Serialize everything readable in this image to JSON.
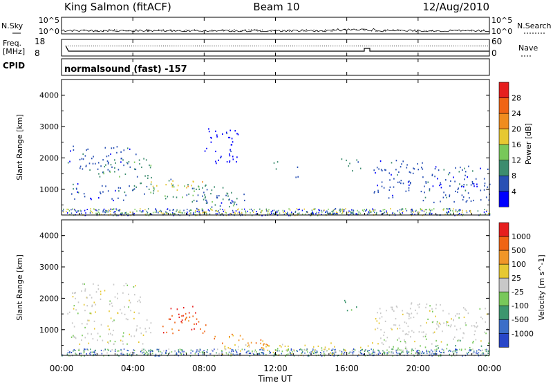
{
  "header": {
    "station": "King Salmon (fitACF)",
    "beam": "Beam 10",
    "date": "12/Aug/2010"
  },
  "noise_panel": {
    "left_label": "N.Sky",
    "right_label": "N.Search",
    "ticks": [
      "10^5",
      "10^0"
    ]
  },
  "freq_panel": {
    "left_label_1": "Freq.",
    "left_label_2": "[MHz]",
    "left_ticks": [
      "18",
      "8"
    ],
    "right_label": "Nave",
    "right_ticks": [
      "60",
      "0"
    ]
  },
  "cpid_panel": {
    "label": "CPID",
    "text": "normalsound (fast) -157"
  },
  "time_axis": {
    "label": "Time UT",
    "ticks": [
      "00:00",
      "04:00",
      "08:00",
      "12:00",
      "16:00",
      "20:00",
      "00:00"
    ]
  },
  "chart_data": [
    {
      "type": "heatmap",
      "panel": "power",
      "xlabel": "",
      "ylabel": "Slant Range [km]",
      "x_ticks": [
        "00:00",
        "04:00",
        "08:00",
        "12:00",
        "16:00",
        "20:00",
        "00:00"
      ],
      "y_ticks": [
        "1000",
        "2000",
        "3000",
        "4000"
      ],
      "xlim": [
        0,
        24
      ],
      "ylim": [
        180,
        4500
      ],
      "colorbar": {
        "label": "Power [dB]",
        "ticks": [
          "4",
          "8",
          "12",
          "16",
          "20",
          "24",
          "28"
        ],
        "colors": [
          "#0000ff",
          "#2850b4",
          "#3c8c6e",
          "#78c85a",
          "#e6c832",
          "#f08c1e",
          "#f06414",
          "#e61e1e"
        ]
      },
      "scatter_regions": [
        {
          "t": [
            0.2,
            4.2
          ],
          "r": [
            1600,
            2400
          ],
          "level": 1,
          "trend": 0
        },
        {
          "t": [
            0.5,
            4.0
          ],
          "r": [
            650,
            1200
          ],
          "level": 1,
          "trend": 0
        },
        {
          "t": [
            2.0,
            5.0
          ],
          "r": [
            1400,
            2000
          ],
          "level": 2,
          "trend": 0
        },
        {
          "t": [
            4.0,
            10.0
          ],
          "r": [
            850,
            1500
          ],
          "level": 2,
          "trend": -150
        },
        {
          "t": [
            5.0,
            8.0
          ],
          "r": [
            950,
            1350
          ],
          "level": 4,
          "trend": 0
        },
        {
          "t": [
            7.5,
            10.5
          ],
          "r": [
            400,
            900
          ],
          "level": 1,
          "trend": 0
        },
        {
          "t": [
            8.0,
            10.0
          ],
          "r": [
            1800,
            3000
          ],
          "level": 0,
          "trend": 0
        },
        {
          "t": [
            11.8,
            12.2
          ],
          "r": [
            1500,
            1900
          ],
          "level": 2,
          "trend": 0
        },
        {
          "t": [
            13.0,
            13.3
          ],
          "r": [
            1300,
            1800
          ],
          "level": 1,
          "trend": 0
        },
        {
          "t": [
            15.6,
            16.8
          ],
          "r": [
            1600,
            2000
          ],
          "level": 2,
          "trend": 0
        },
        {
          "t": [
            17.5,
            24.0
          ],
          "r": [
            1300,
            2000
          ],
          "level": 1,
          "trend": -100
        },
        {
          "t": [
            17.5,
            24.0
          ],
          "r": [
            600,
            1300
          ],
          "level": 1,
          "trend": 0
        }
      ]
    },
    {
      "type": "heatmap",
      "panel": "velocity",
      "xlabel": "Time UT",
      "ylabel": "Slant Range [km]",
      "x_ticks": [
        "00:00",
        "04:00",
        "08:00",
        "12:00",
        "16:00",
        "20:00",
        "00:00"
      ],
      "y_ticks": [
        "1000",
        "2000",
        "3000",
        "4000"
      ],
      "xlim": [
        0,
        24
      ],
      "ylim": [
        180,
        4500
      ],
      "colorbar": {
        "label": "Velocity [m s^-1]",
        "ticks": [
          "1000",
          "500",
          "100",
          "25",
          "-25",
          "-100",
          "-500",
          "-1000"
        ],
        "colors": [
          "#2846c8",
          "#3c6ec8",
          "#3c966e",
          "#78c85a",
          "#c8c8c8",
          "#e6c832",
          "#f09628",
          "#f06414",
          "#e61e1e"
        ]
      },
      "scatter_regions": [
        {
          "t": [
            0.2,
            4.5
          ],
          "r": [
            1500,
            2500
          ],
          "level": 4,
          "trend": 0
        },
        {
          "t": [
            0.5,
            5.0
          ],
          "r": [
            500,
            1400
          ],
          "level": 4,
          "trend": 0
        },
        {
          "t": [
            5.5,
            8.2
          ],
          "r": [
            900,
            1500
          ],
          "level": 7,
          "trend": 0
        },
        {
          "t": [
            6.0,
            7.5
          ],
          "r": [
            1300,
            1800
          ],
          "level": 8,
          "trend": 0
        },
        {
          "t": [
            8.0,
            12.0
          ],
          "r": [
            650,
            1000
          ],
          "level": 6,
          "trend": -100
        },
        {
          "t": [
            9.0,
            18.0
          ],
          "r": [
            200,
            600
          ],
          "level": 5,
          "trend": 0
        },
        {
          "t": [
            12.0,
            16.0
          ],
          "r": [
            180,
            450
          ],
          "level": 3,
          "trend": 0
        },
        {
          "t": [
            15.8,
            16.6
          ],
          "r": [
            1600,
            2000
          ],
          "level": 2,
          "trend": 0
        },
        {
          "t": [
            17.5,
            24.0
          ],
          "r": [
            1300,
            2000
          ],
          "level": 4,
          "trend": -100
        },
        {
          "t": [
            17.5,
            24.0
          ],
          "r": [
            600,
            1300
          ],
          "level": 4,
          "trend": 0
        },
        {
          "t": [
            18.0,
            24.0
          ],
          "r": [
            250,
            700
          ],
          "level": 3,
          "trend": 0
        }
      ]
    }
  ]
}
